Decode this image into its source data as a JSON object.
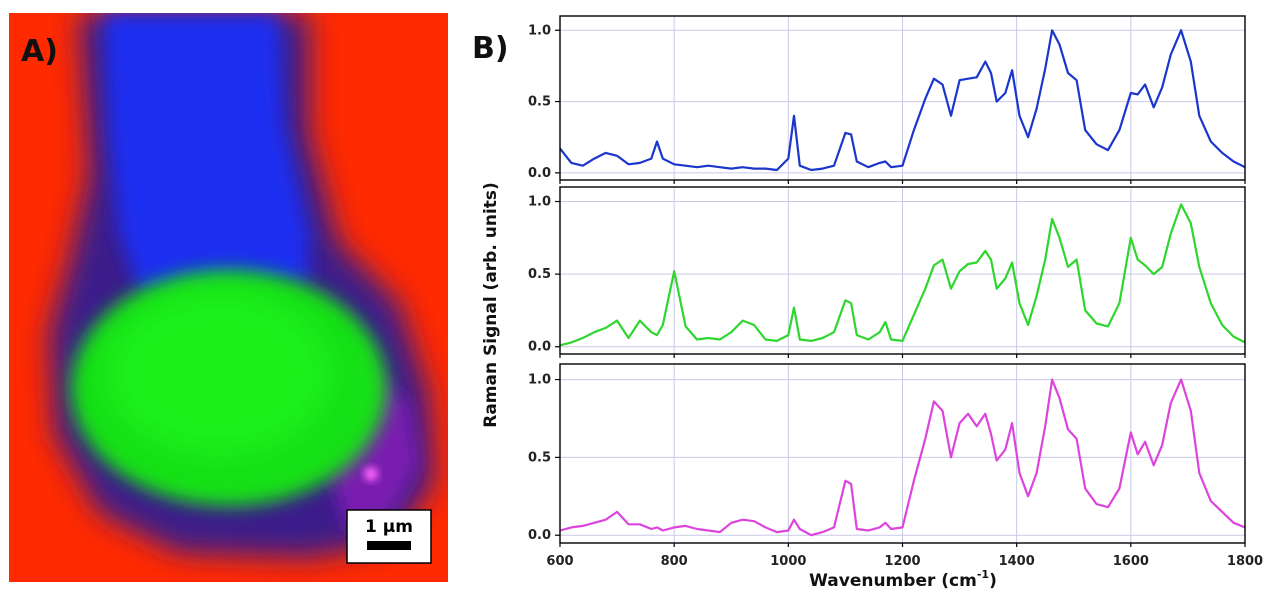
{
  "figure": {
    "panel_a_label": "A)",
    "panel_b_label": "B)",
    "scale_bar_label": "1 μm",
    "map_colors": {
      "background": "#ff2a00",
      "nucleus": "#15e015",
      "cytoplasm": "#1c2ef0",
      "membrane": "#7a1fb0"
    }
  },
  "chart_data": {
    "type": "line",
    "xlabel_main": "Wavenumber (cm",
    "xlabel_sup": "-1",
    "xlabel_close": ")",
    "ylabel": "Raman Signal (arb. units)",
    "xlim": [
      600,
      1800
    ],
    "x_ticks": [
      "600",
      "800",
      "1000",
      "1200",
      "1400",
      "1600",
      "1800"
    ],
    "ylim": [
      -0.05,
      1.1
    ],
    "y_ticks": [
      "0.0",
      "0.5",
      "1.0"
    ],
    "grid": true,
    "x": [
      600,
      620,
      640,
      660,
      680,
      700,
      720,
      740,
      760,
      770,
      780,
      800,
      820,
      840,
      860,
      880,
      900,
      920,
      940,
      960,
      980,
      1000,
      1010,
      1020,
      1040,
      1060,
      1080,
      1100,
      1110,
      1120,
      1140,
      1160,
      1170,
      1180,
      1200,
      1220,
      1240,
      1255,
      1270,
      1285,
      1300,
      1315,
      1330,
      1345,
      1355,
      1365,
      1380,
      1392,
      1405,
      1420,
      1435,
      1450,
      1462,
      1475,
      1490,
      1505,
      1520,
      1540,
      1560,
      1580,
      1600,
      1612,
      1625,
      1640,
      1655,
      1670,
      1688,
      1705,
      1720,
      1740,
      1760,
      1780,
      1800
    ],
    "series": [
      {
        "color": "#1a36cc",
        "values": [
          0.17,
          0.07,
          0.05,
          0.1,
          0.14,
          0.12,
          0.06,
          0.07,
          0.1,
          0.22,
          0.1,
          0.06,
          0.05,
          0.04,
          0.05,
          0.04,
          0.03,
          0.04,
          0.03,
          0.03,
          0.02,
          0.1,
          0.4,
          0.05,
          0.02,
          0.03,
          0.05,
          0.28,
          0.27,
          0.08,
          0.04,
          0.07,
          0.08,
          0.04,
          0.05,
          0.3,
          0.52,
          0.66,
          0.62,
          0.4,
          0.65,
          0.66,
          0.67,
          0.78,
          0.7,
          0.5,
          0.56,
          0.72,
          0.4,
          0.25,
          0.45,
          0.73,
          1.0,
          0.9,
          0.7,
          0.65,
          0.3,
          0.2,
          0.16,
          0.3,
          0.56,
          0.55,
          0.62,
          0.46,
          0.6,
          0.83,
          1.0,
          0.78,
          0.4,
          0.22,
          0.14,
          0.08,
          0.04
        ]
      },
      {
        "color": "#2ed62e",
        "values": [
          0.01,
          0.03,
          0.06,
          0.1,
          0.13,
          0.18,
          0.06,
          0.18,
          0.1,
          0.08,
          0.15,
          0.52,
          0.14,
          0.05,
          0.06,
          0.05,
          0.1,
          0.18,
          0.15,
          0.05,
          0.04,
          0.08,
          0.27,
          0.05,
          0.04,
          0.06,
          0.1,
          0.32,
          0.3,
          0.08,
          0.05,
          0.1,
          0.17,
          0.05,
          0.04,
          0.22,
          0.4,
          0.56,
          0.6,
          0.4,
          0.52,
          0.57,
          0.58,
          0.66,
          0.6,
          0.4,
          0.47,
          0.58,
          0.3,
          0.15,
          0.35,
          0.6,
          0.88,
          0.75,
          0.55,
          0.6,
          0.25,
          0.16,
          0.14,
          0.3,
          0.75,
          0.6,
          0.56,
          0.5,
          0.55,
          0.78,
          0.98,
          0.85,
          0.55,
          0.3,
          0.15,
          0.07,
          0.03
        ]
      },
      {
        "color": "#dd44dd",
        "values": [
          0.03,
          0.05,
          0.06,
          0.08,
          0.1,
          0.15,
          0.07,
          0.07,
          0.04,
          0.05,
          0.03,
          0.05,
          0.06,
          0.04,
          0.03,
          0.02,
          0.08,
          0.1,
          0.09,
          0.05,
          0.02,
          0.03,
          0.1,
          0.04,
          0.0,
          0.02,
          0.05,
          0.35,
          0.33,
          0.04,
          0.03,
          0.05,
          0.08,
          0.04,
          0.05,
          0.35,
          0.62,
          0.86,
          0.8,
          0.5,
          0.72,
          0.78,
          0.7,
          0.78,
          0.65,
          0.48,
          0.55,
          0.72,
          0.4,
          0.25,
          0.4,
          0.7,
          1.0,
          0.88,
          0.68,
          0.62,
          0.3,
          0.2,
          0.18,
          0.3,
          0.66,
          0.52,
          0.6,
          0.45,
          0.58,
          0.85,
          1.0,
          0.8,
          0.4,
          0.22,
          0.15,
          0.08,
          0.05
        ]
      }
    ]
  }
}
